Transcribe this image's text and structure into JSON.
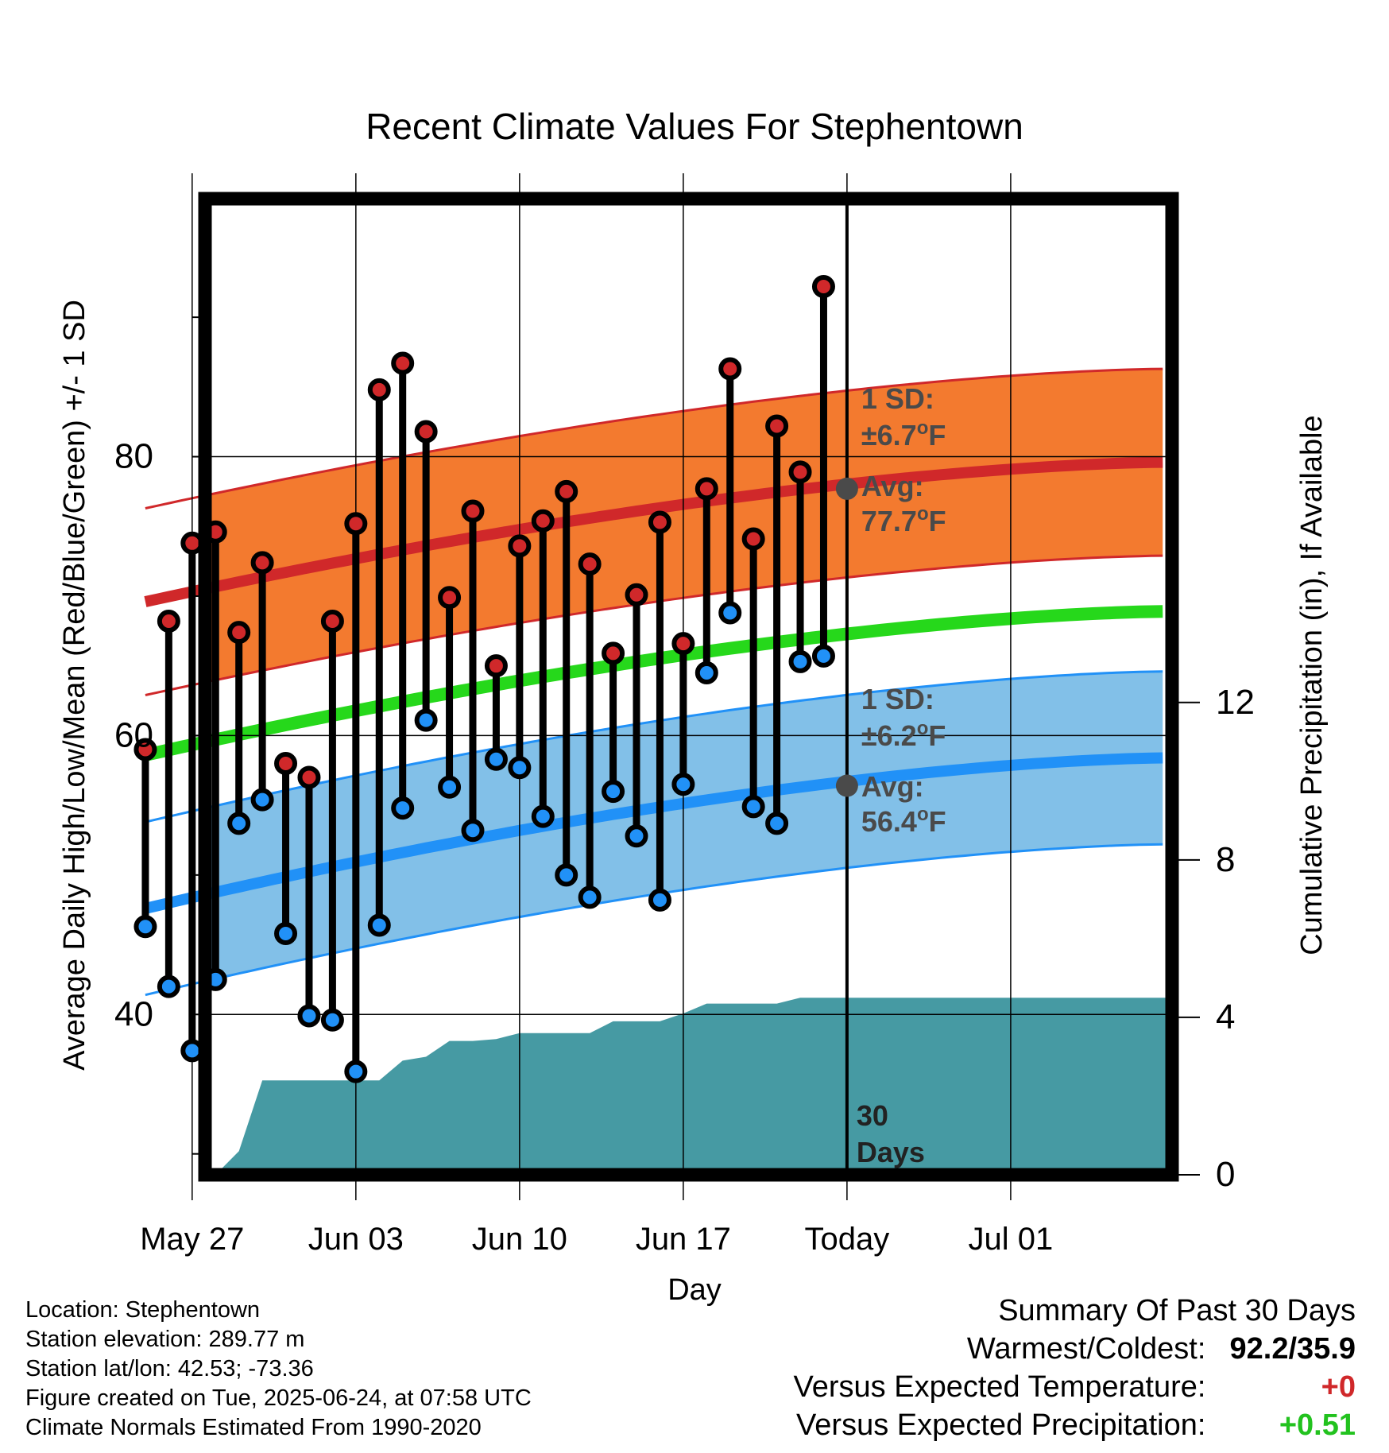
{
  "chart_data": {
    "type": "line",
    "title": "Recent Climate Values For Stephentown",
    "xlabel": "Day",
    "ylabel_left": "Average Daily High/Low/Mean (Red/Blue/Green) +/- 1 SD",
    "ylabel_right": "Cumulative Precipitation (in), If Available",
    "y_left_range": [
      28.5,
      98.5
    ],
    "y_left_ticks": [
      40,
      60,
      80
    ],
    "y_right_range": [
      0,
      24.8
    ],
    "y_right_ticks": [
      0,
      4,
      8,
      12
    ],
    "x_ticks": [
      "May 27",
      "Jun 03",
      "Jun 10",
      "Jun 17",
      "Today",
      "Jul 01"
    ],
    "dates": [
      "May 25",
      "May 26",
      "May 27",
      "May 28",
      "May 29",
      "May 30",
      "May 31",
      "Jun 01",
      "Jun 02",
      "Jun 03",
      "Jun 04",
      "Jun 05",
      "Jun 06",
      "Jun 07",
      "Jun 08",
      "Jun 09",
      "Jun 10",
      "Jun 11",
      "Jun 12",
      "Jun 13",
      "Jun 14",
      "Jun 15",
      "Jun 16",
      "Jun 17",
      "Jun 18",
      "Jun 19",
      "Jun 20",
      "Jun 21",
      "Jun 22",
      "Jun 23"
    ],
    "daily_high": [
      59.0,
      68.2,
      73.8,
      74.6,
      67.4,
      72.4,
      58.0,
      57.0,
      68.2,
      75.2,
      84.8,
      86.7,
      81.8,
      69.9,
      76.1,
      65.0,
      73.6,
      75.4,
      77.5,
      72.3,
      65.9,
      70.1,
      75.3,
      66.6,
      77.7,
      86.3,
      74.1,
      82.2,
      78.9,
      92.2
    ],
    "daily_low": [
      46.3,
      42.0,
      37.4,
      42.5,
      53.7,
      55.4,
      45.8,
      39.9,
      39.6,
      35.9,
      46.4,
      54.8,
      61.1,
      56.3,
      53.2,
      58.3,
      57.7,
      54.2,
      50.0,
      48.4,
      56.0,
      52.8,
      48.2,
      56.5,
      64.5,
      68.8,
      54.9,
      53.7,
      65.3,
      65.7
    ],
    "normal_high": {
      "start": 69.6,
      "today": 77.7,
      "end": 79.6,
      "sd": 6.7
    },
    "normal_low": {
      "start": 47.6,
      "today": 56.4,
      "end": 58.4,
      "sd": 6.2
    },
    "normal_mean": {
      "start": 58.6,
      "end": 68.9
    },
    "precip_cumulative": [
      0,
      0,
      0,
      0,
      0.6,
      2.4,
      2.4,
      2.4,
      2.4,
      2.4,
      2.4,
      2.9,
      3.0,
      3.4,
      3.4,
      3.45,
      3.6,
      3.6,
      3.6,
      3.6,
      3.9,
      3.9,
      3.9,
      4.1,
      4.35,
      4.35,
      4.35,
      4.35,
      4.5,
      4.5
    ],
    "annotations": {
      "high_sd": "1 SD:",
      "high_sd_value": "±6.7°F",
      "high_avg": "Avg:",
      "high_avg_value": "77.7°F",
      "low_sd": "1 SD:",
      "low_sd_value": "±6.2°F",
      "low_avg": "Avg:",
      "low_avg_value": "56.4°F",
      "days_num": "30",
      "days_label": "Days"
    },
    "colors": {
      "high": "#d0282a",
      "high_band": "#f37a2f",
      "low": "#2191f7",
      "low_band": "#82c0e8",
      "mean": "#26d81b",
      "precip": "#469aa3",
      "frame": "#000000",
      "annotation": "#4a4a4a"
    }
  },
  "info": {
    "location": "Location: Stephentown",
    "elevation": "Station elevation: 289.77 m",
    "latlon": "Station lat/lon: 42.53; -73.36",
    "created": "Figure created on Tue, 2025-06-24, at 07:58 UTC",
    "normals": "Climate Normals Estimated From 1990-2020"
  },
  "summary": {
    "title": "Summary Of Past 30 Days",
    "warmest_label": "Warmest/Coldest:",
    "warmest_value": "92.2/35.9",
    "temp_label": "Versus Expected Temperature:",
    "temp_value": "+0",
    "temp_color": "#d0282a",
    "precip_label": "Versus Expected Precipitation:",
    "precip_value": "+0.51",
    "precip_color": "#22c21e"
  }
}
